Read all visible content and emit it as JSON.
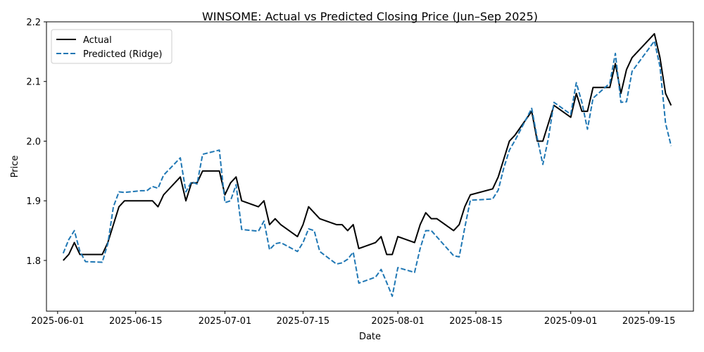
{
  "chart_data": {
    "type": "line",
    "title": "WINSOME: Actual vs Predicted Closing Price (Jun–Sep 2025)",
    "xlabel": "Date",
    "ylabel": "Price",
    "x_type": "date",
    "xlim": [
      "2025-05-30",
      "2025-09-23"
    ],
    "ylim": [
      1.715,
      2.2
    ],
    "xticks": [
      "2025-06-01",
      "2025-06-15",
      "2025-07-01",
      "2025-07-15",
      "2025-08-01",
      "2025-08-15",
      "2025-09-01",
      "2025-09-15"
    ],
    "yticks": [
      1.8,
      1.9,
      2.0,
      2.1,
      2.2
    ],
    "ytick_labels": [
      "1.8",
      "1.9",
      "2.0",
      "2.1",
      "2.2"
    ],
    "grid": false,
    "legend_position": "upper-left",
    "series": [
      {
        "name": "Actual",
        "color": "#000000",
        "style": "solid",
        "points": [
          [
            "2025-06-02",
            1.8
          ],
          [
            "2025-06-03",
            1.81
          ],
          [
            "2025-06-04",
            1.83
          ],
          [
            "2025-06-05",
            1.81
          ],
          [
            "2025-06-06",
            1.81
          ],
          [
            "2025-06-09",
            1.81
          ],
          [
            "2025-06-10",
            1.83
          ],
          [
            "2025-06-11",
            1.86
          ],
          [
            "2025-06-12",
            1.89
          ],
          [
            "2025-06-13",
            1.9
          ],
          [
            "2025-06-16",
            1.9
          ],
          [
            "2025-06-17",
            1.9
          ],
          [
            "2025-06-18",
            1.9
          ],
          [
            "2025-06-19",
            1.89
          ],
          [
            "2025-06-20",
            1.91
          ],
          [
            "2025-06-23",
            1.94
          ],
          [
            "2025-06-24",
            1.9
          ],
          [
            "2025-06-25",
            1.93
          ],
          [
            "2025-06-26",
            1.93
          ],
          [
            "2025-06-27",
            1.95
          ],
          [
            "2025-06-30",
            1.95
          ],
          [
            "2025-07-01",
            1.91
          ],
          [
            "2025-07-02",
            1.93
          ],
          [
            "2025-07-03",
            1.94
          ],
          [
            "2025-07-04",
            1.9
          ],
          [
            "2025-07-07",
            1.89
          ],
          [
            "2025-07-08",
            1.9
          ],
          [
            "2025-07-09",
            1.86
          ],
          [
            "2025-07-10",
            1.87
          ],
          [
            "2025-07-11",
            1.86
          ],
          [
            "2025-07-14",
            1.84
          ],
          [
            "2025-07-15",
            1.86
          ],
          [
            "2025-07-16",
            1.89
          ],
          [
            "2025-07-18",
            1.87
          ],
          [
            "2025-07-21",
            1.86
          ],
          [
            "2025-07-22",
            1.86
          ],
          [
            "2025-07-23",
            1.85
          ],
          [
            "2025-07-24",
            1.86
          ],
          [
            "2025-07-25",
            1.82
          ],
          [
            "2025-07-28",
            1.83
          ],
          [
            "2025-07-29",
            1.84
          ],
          [
            "2025-07-30",
            1.81
          ],
          [
            "2025-07-31",
            1.81
          ],
          [
            "2025-08-01",
            1.84
          ],
          [
            "2025-08-04",
            1.83
          ],
          [
            "2025-08-05",
            1.86
          ],
          [
            "2025-08-06",
            1.88
          ],
          [
            "2025-08-07",
            1.87
          ],
          [
            "2025-08-08",
            1.87
          ],
          [
            "2025-08-11",
            1.85
          ],
          [
            "2025-08-12",
            1.86
          ],
          [
            "2025-08-13",
            1.89
          ],
          [
            "2025-08-14",
            1.91
          ],
          [
            "2025-08-18",
            1.92
          ],
          [
            "2025-08-19",
            1.94
          ],
          [
            "2025-08-20",
            1.97
          ],
          [
            "2025-08-21",
            2.0
          ],
          [
            "2025-08-22",
            2.01
          ],
          [
            "2025-08-25",
            2.05
          ],
          [
            "2025-08-26",
            2.0
          ],
          [
            "2025-08-27",
            2.0
          ],
          [
            "2025-08-29",
            2.06
          ],
          [
            "2025-09-01",
            2.04
          ],
          [
            "2025-09-02",
            2.08
          ],
          [
            "2025-09-03",
            2.05
          ],
          [
            "2025-09-04",
            2.05
          ],
          [
            "2025-09-05",
            2.09
          ],
          [
            "2025-09-08",
            2.09
          ],
          [
            "2025-09-09",
            2.13
          ],
          [
            "2025-09-10",
            2.08
          ],
          [
            "2025-09-11",
            2.12
          ],
          [
            "2025-09-12",
            2.14
          ],
          [
            "2025-09-15",
            2.17
          ],
          [
            "2025-09-16",
            2.18
          ],
          [
            "2025-09-17",
            2.14
          ],
          [
            "2025-09-18",
            2.08
          ],
          [
            "2025-09-19",
            2.06
          ]
        ]
      },
      {
        "name": "Predicted (Ridge)",
        "color": "#1f77b4",
        "style": "dashed",
        "points": [
          [
            "2025-06-02",
            1.812
          ],
          [
            "2025-06-03",
            1.835
          ],
          [
            "2025-06-04",
            1.85
          ],
          [
            "2025-06-05",
            1.815
          ],
          [
            "2025-06-06",
            1.798
          ],
          [
            "2025-06-09",
            1.797
          ],
          [
            "2025-06-10",
            1.828
          ],
          [
            "2025-06-11",
            1.89
          ],
          [
            "2025-06-12",
            1.915
          ],
          [
            "2025-06-13",
            1.914
          ],
          [
            "2025-06-16",
            1.917
          ],
          [
            "2025-06-17",
            1.917
          ],
          [
            "2025-06-18",
            1.924
          ],
          [
            "2025-06-19",
            1.921
          ],
          [
            "2025-06-20",
            1.943
          ],
          [
            "2025-06-23",
            1.972
          ],
          [
            "2025-06-24",
            1.915
          ],
          [
            "2025-06-25",
            1.932
          ],
          [
            "2025-06-26",
            1.928
          ],
          [
            "2025-06-27",
            1.978
          ],
          [
            "2025-06-30",
            1.985
          ],
          [
            "2025-07-01",
            1.897
          ],
          [
            "2025-07-02",
            1.9
          ],
          [
            "2025-07-03",
            1.927
          ],
          [
            "2025-07-04",
            1.852
          ],
          [
            "2025-07-07",
            1.849
          ],
          [
            "2025-07-08",
            1.866
          ],
          [
            "2025-07-09",
            1.818
          ],
          [
            "2025-07-10",
            1.828
          ],
          [
            "2025-07-11",
            1.83
          ],
          [
            "2025-07-14",
            1.815
          ],
          [
            "2025-07-15",
            1.83
          ],
          [
            "2025-07-16",
            1.853
          ],
          [
            "2025-07-17",
            1.85
          ],
          [
            "2025-07-18",
            1.815
          ],
          [
            "2025-07-21",
            1.794
          ],
          [
            "2025-07-22",
            1.796
          ],
          [
            "2025-07-23",
            1.802
          ],
          [
            "2025-07-24",
            1.814
          ],
          [
            "2025-07-25",
            1.762
          ],
          [
            "2025-07-28",
            1.772
          ],
          [
            "2025-07-29",
            1.785
          ],
          [
            "2025-07-30",
            1.763
          ],
          [
            "2025-07-31",
            1.74
          ],
          [
            "2025-08-01",
            1.788
          ],
          [
            "2025-08-04",
            1.78
          ],
          [
            "2025-08-05",
            1.82
          ],
          [
            "2025-08-06",
            1.85
          ],
          [
            "2025-08-07",
            1.85
          ],
          [
            "2025-08-11",
            1.808
          ],
          [
            "2025-08-12",
            1.806
          ],
          [
            "2025-08-13",
            1.855
          ],
          [
            "2025-08-14",
            1.901
          ],
          [
            "2025-08-18",
            1.903
          ],
          [
            "2025-08-19",
            1.918
          ],
          [
            "2025-08-20",
            1.955
          ],
          [
            "2025-08-21",
            1.985
          ],
          [
            "2025-08-22",
            2.001
          ],
          [
            "2025-08-25",
            2.055
          ],
          [
            "2025-08-26",
            2.005
          ],
          [
            "2025-08-27",
            1.961
          ],
          [
            "2025-08-28",
            2.005
          ],
          [
            "2025-08-29",
            2.065
          ],
          [
            "2025-09-01",
            2.045
          ],
          [
            "2025-09-02",
            2.098
          ],
          [
            "2025-09-03",
            2.065
          ],
          [
            "2025-09-04",
            2.02
          ],
          [
            "2025-09-05",
            2.072
          ],
          [
            "2025-09-08",
            2.097
          ],
          [
            "2025-09-09",
            2.147
          ],
          [
            "2025-09-10",
            2.065
          ],
          [
            "2025-09-11",
            2.066
          ],
          [
            "2025-09-12",
            2.117
          ],
          [
            "2025-09-15",
            2.155
          ],
          [
            "2025-09-16",
            2.168
          ],
          [
            "2025-09-17",
            2.125
          ],
          [
            "2025-09-18",
            2.03
          ],
          [
            "2025-09-19",
            1.992
          ]
        ]
      }
    ]
  }
}
